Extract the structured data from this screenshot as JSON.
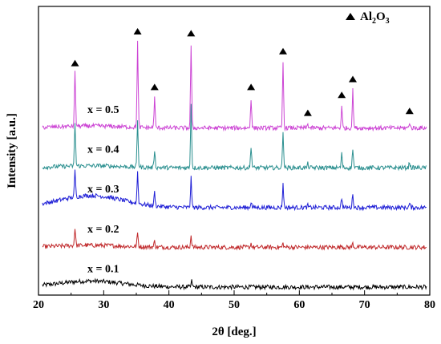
{
  "chart_data": {
    "type": "line",
    "title": "",
    "xlabel": "2θ [deg.]",
    "ylabel": "Intensity [a.u.]",
    "xlim": [
      20,
      80
    ],
    "x_ticks": [
      20,
      30,
      40,
      50,
      60,
      70,
      80
    ],
    "y_ticks": [],
    "grid": false,
    "legend": {
      "placement": "top-right",
      "marker": "filled-triangle",
      "label_main": "Al",
      "label_sub1": "2",
      "label_mid": "O",
      "label_sub2": "3"
    },
    "peak_marker_positions_2theta": [
      25.6,
      35.2,
      37.8,
      43.4,
      52.6,
      57.5,
      61.3,
      66.5,
      68.2,
      76.9
    ],
    "series": [
      {
        "name": "x = 0.1",
        "color": "#000000",
        "baseline": 0.0,
        "amorphous_hump": 0.03,
        "peaks": [
          [
            43.5,
            0.03
          ]
        ]
      },
      {
        "name": "x = 0.2",
        "color": "#c0282a",
        "baseline": 0.2,
        "amorphous_hump": 0.01,
        "peaks": [
          [
            25.6,
            0.09
          ],
          [
            35.2,
            0.07
          ],
          [
            37.8,
            0.03
          ],
          [
            43.4,
            0.06
          ],
          [
            52.6,
            0.02
          ],
          [
            57.5,
            0.02
          ],
          [
            66.5,
            0.01
          ],
          [
            68.2,
            0.02
          ]
        ]
      },
      {
        "name": "x = 0.3",
        "color": "#1f1fd6",
        "baseline": 0.4,
        "amorphous_hump": 0.06,
        "peaks": [
          [
            25.6,
            0.13
          ],
          [
            35.2,
            0.16
          ],
          [
            37.8,
            0.07
          ],
          [
            43.4,
            0.15
          ],
          [
            52.6,
            0.03
          ],
          [
            57.5,
            0.12
          ],
          [
            61.3,
            0.01
          ],
          [
            66.5,
            0.05
          ],
          [
            68.2,
            0.07
          ],
          [
            76.9,
            0.02
          ]
        ]
      },
      {
        "name": "x = 0.4",
        "color": "#2a8f8f",
        "baseline": 0.6,
        "amorphous_hump": 0.01,
        "peaks": [
          [
            25.6,
            0.22
          ],
          [
            35.2,
            0.24
          ],
          [
            37.8,
            0.09
          ],
          [
            43.4,
            0.32
          ],
          [
            52.6,
            0.11
          ],
          [
            57.5,
            0.19
          ],
          [
            61.3,
            0.02
          ],
          [
            66.5,
            0.07
          ],
          [
            68.2,
            0.1
          ],
          [
            76.9,
            0.03
          ]
        ]
      },
      {
        "name": "x = 0.5",
        "color": "#cc44d4",
        "baseline": 0.8,
        "amorphous_hump": 0.01,
        "peaks": [
          [
            25.6,
            0.27
          ],
          [
            35.2,
            0.43
          ],
          [
            37.8,
            0.15
          ],
          [
            43.4,
            0.42
          ],
          [
            52.6,
            0.15
          ],
          [
            57.5,
            0.33
          ],
          [
            61.3,
            0.02
          ],
          [
            66.5,
            0.11
          ],
          [
            68.2,
            0.19
          ],
          [
            76.9,
            0.03
          ]
        ]
      }
    ]
  }
}
